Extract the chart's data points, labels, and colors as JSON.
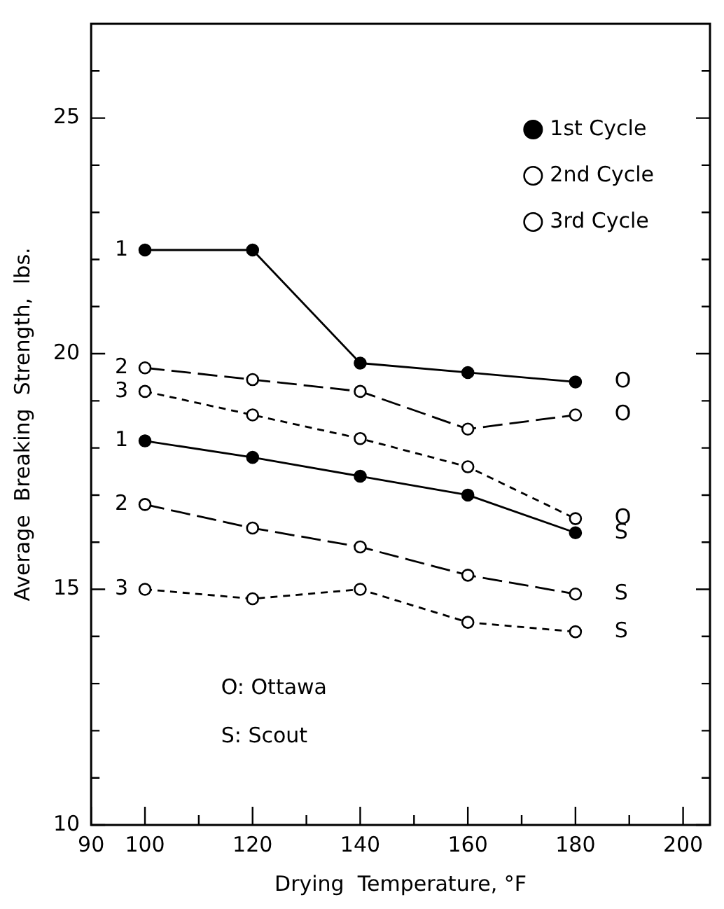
{
  "chart_data": {
    "type": "line",
    "xlabel": "Drying  Temperature, °F",
    "ylabel": "Average  Breaking  Strength,  lbs.",
    "x": [
      100,
      120,
      140,
      160,
      180
    ],
    "xlim": [
      90,
      205
    ],
    "xticks": [
      90,
      100,
      {
        "value": 110,
        "label": null
      },
      120,
      {
        "value": 130,
        "label": null
      },
      140,
      {
        "value": 150,
        "label": null
      },
      160,
      {
        "value": 170,
        "label": null
      },
      180,
      {
        "value": 190,
        "label": null
      },
      200
    ],
    "ylim": [
      10,
      27
    ],
    "yticks": [
      10,
      {
        "value": 11,
        "label": null
      },
      {
        "value": 12,
        "label": null
      },
      {
        "value": 13,
        "label": null
      },
      {
        "value": 14,
        "label": null
      },
      15,
      {
        "value": 16,
        "label": null
      },
      {
        "value": 17,
        "label": null
      },
      {
        "value": 18,
        "label": null
      },
      {
        "value": 19,
        "label": null
      },
      20,
      {
        "value": 21,
        "label": null
      },
      {
        "value": 22,
        "label": null
      },
      {
        "value": 23,
        "label": null
      },
      {
        "value": 24,
        "label": null
      },
      25,
      {
        "value": 26,
        "label": null
      }
    ],
    "grid": false,
    "legend": "top right",
    "marker": "circle",
    "series": [
      {
        "name": "1st Cycle",
        "color": "#000000",
        "line_style": "solid",
        "values": [
          22.2,
          22.2,
          19.8,
          19.6,
          19.4
        ]
      },
      {
        "name": "2nd Cycle",
        "color": "#000000",
        "line_style": "dashed",
        "values": [
          19.7,
          19.45,
          19.2,
          18.4,
          18.7
        ]
      },
      {
        "name": "3rd Cycle",
        "color": "#000000",
        "line_style": "dotted",
        "values": [
          19.2,
          18.7,
          18.2,
          17.6,
          16.5
        ]
      },
      {
        "color": "#000000",
        "line_style": "solid",
        "values": [
          18.15,
          17.8,
          17.4,
          17.0,
          16.2
        ]
      },
      {
        "color": "#000000",
        "line_style": "dashed",
        "values": [
          16.8,
          16.3,
          15.9,
          15.3,
          14.9
        ]
      },
      {
        "color": "#000000",
        "line_style": "dotted",
        "values": [
          15.0,
          14.8,
          15.0,
          14.3,
          14.1
        ]
      }
    ],
    "annotations": [
      "1",
      "2",
      "3",
      "1",
      "2",
      "3",
      "O",
      "O",
      "O",
      "S",
      "S",
      "S",
      "O: Ottawa",
      "S: Scout"
    ]
  }
}
